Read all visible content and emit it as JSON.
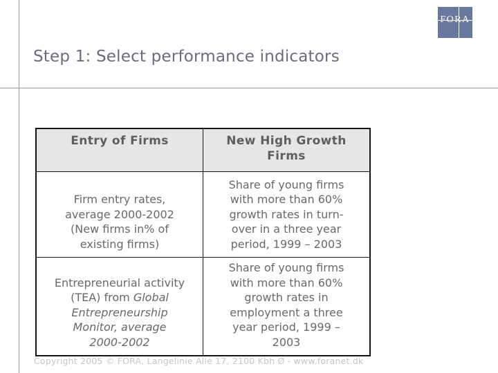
{
  "slide": {
    "title": "Step 1: Select performance indicators",
    "footer": "Copyright 2005 © FORA, Langelinie Allé 17, 2100 Kbh Ø - www.foranet.dk"
  },
  "logo": {
    "text": "FORA",
    "color": "#69789f"
  },
  "table": {
    "headers": [
      "Entry of Firms",
      "New High Growth\nFirms"
    ],
    "rows": [
      {
        "left": "Firm entry rates,\naverage 2000-2002\n(New firms in% of\nexisting firms)",
        "right": "Share of young firms\nwith more than 60%\ngrowth rates in turn-\nover in a three year\nperiod, 1999 – 2003"
      },
      {
        "left_plain": "Entrepreneurial activity\n(TEA) from ",
        "left_italic": "Global\nEntrepreneurship\nMonitor, average\n2000-2002",
        "right": "Share of young firms\nwith more than 60%\ngrowth rates in\nemployment a three\nyear period, 1999 –\n2003"
      }
    ]
  },
  "colors": {
    "logo_blue": "#69789f",
    "title_gray": "#6b6b7d",
    "header_text": "#5e5e5e",
    "body_text": "#696969",
    "header_bg": "#e6e6e6",
    "rule_gray": "#999999",
    "footer_gray": "#c6c6c6",
    "table_border": "#141414"
  }
}
